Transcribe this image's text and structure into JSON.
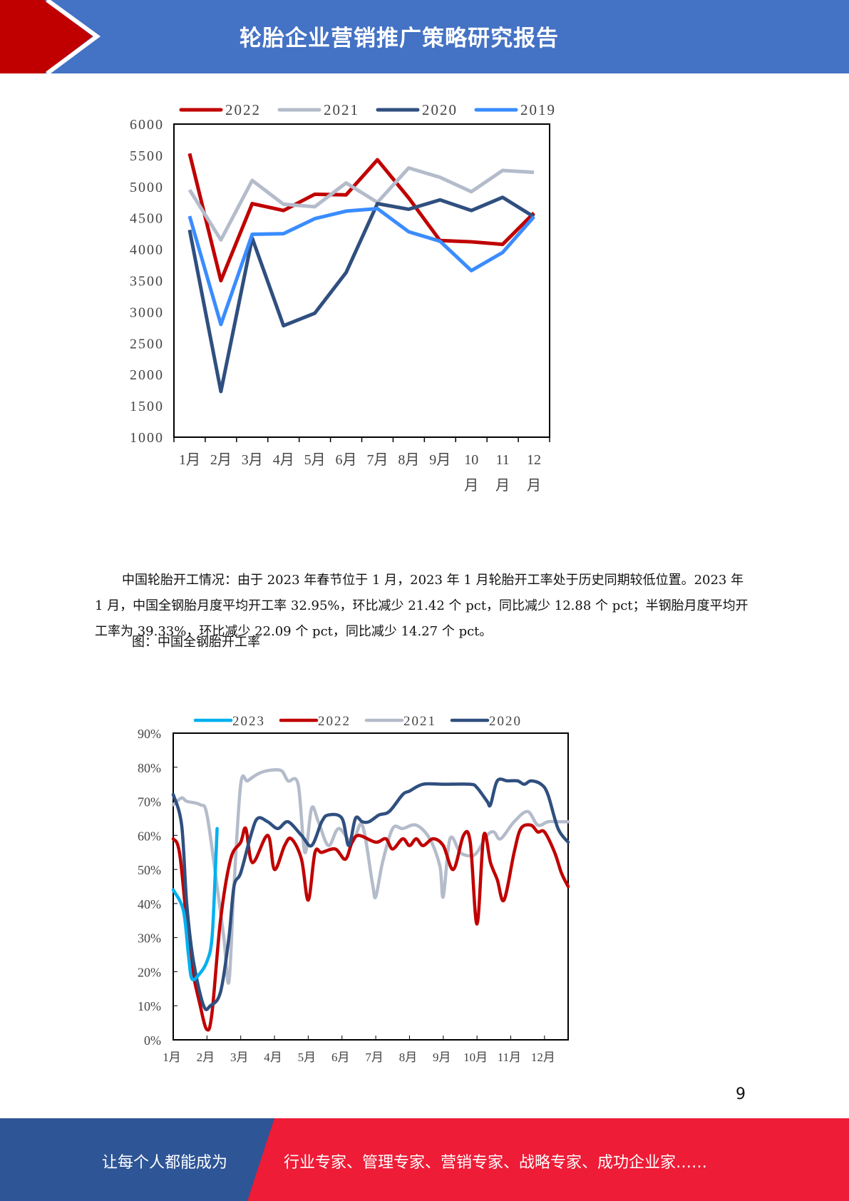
{
  "header": {
    "title": "轮胎企业营销推广策略研究报告",
    "colors": {
      "blue": "#4472c4",
      "red": "#c00000"
    }
  },
  "paragraph": {
    "lines": [
      "中国轮胎开工情况：由于 2023 年春节位于 1 月，2023 年 1 月轮胎开工率处于历史同期较低位置。2023 年 1 月，中国全钢胎月度平均开工率 32.95%，环比减少 21.42 个 pct，同比减少 12.88 个 pct；半钢胎月度平均开工率为 39.33%，环比减少 22.09 个 pct，同比减少 14.27 个 pct。"
    ]
  },
  "caption": "图：中国全钢胎开工率",
  "page_number": "9",
  "footer": {
    "left": "让每个人都能成为",
    "right": "行业专家、管理专家、营销专家、战略专家、成功企业家……",
    "colors": {
      "blue": "#2e5596",
      "red": "#ee1c37"
    }
  },
  "chart_data": [
    {
      "type": "line",
      "title": "",
      "categories": [
        "1月",
        "2月",
        "3月",
        "4月",
        "5月",
        "6月",
        "7月",
        "8月",
        "9月",
        "10月",
        "11月",
        "12月"
      ],
      "ylim": [
        1000,
        6000
      ],
      "yticks": [
        "6000",
        "5500",
        "5000",
        "4500",
        "4000",
        "3500",
        "3000",
        "2500",
        "2000",
        "1500",
        "1000"
      ],
      "legend": "top",
      "series": [
        {
          "name": "2022",
          "color": "#c00000",
          "values": [
            5530,
            3500,
            4730,
            4620,
            4880,
            4870,
            5430,
            4820,
            4140,
            4120,
            4080,
            4580
          ]
        },
        {
          "name": "2021",
          "color": "#b4bccb",
          "values": [
            4950,
            4150,
            5100,
            4720,
            4680,
            5060,
            4750,
            5300,
            5150,
            4920,
            5260,
            5230
          ]
        },
        {
          "name": "2020",
          "color": "#2f4f7f",
          "values": [
            4310,
            1730,
            4180,
            2780,
            2980,
            3630,
            4730,
            4640,
            4790,
            4620,
            4830,
            4520
          ]
        },
        {
          "name": "2019",
          "color": "#3a8cff",
          "values": [
            4530,
            2800,
            4240,
            4250,
            4490,
            4610,
            4650,
            4280,
            4130,
            3660,
            3950,
            4520
          ]
        }
      ]
    },
    {
      "type": "line",
      "title": "中国全钢胎开工率",
      "categories": [
        "1月",
        "2月",
        "3月",
        "4月",
        "5月",
        "6月",
        "7月",
        "8月",
        "9月",
        "10月",
        "11月",
        "12月"
      ],
      "x_unit": "months since Jan 1",
      "xlim": [
        0,
        11.7
      ],
      "ylim": [
        0,
        90
      ],
      "yticks": [
        "90%",
        "80%",
        "70%",
        "60%",
        "50%",
        "40%",
        "30%",
        "20%",
        "10%",
        "0%"
      ],
      "legend": "top",
      "series": [
        {
          "name": "2023",
          "color": "#00b0f0",
          "points": [
            [
              0,
              44
            ],
            [
              0.3,
              38
            ],
            [
              0.45,
              25
            ],
            [
              0.55,
              18
            ],
            [
              0.75,
              19
            ],
            [
              1.0,
              23
            ],
            [
              1.15,
              30
            ],
            [
              1.25,
              50
            ],
            [
              1.3,
              62
            ]
          ]
        },
        {
          "name": "2022",
          "color": "#c00000",
          "points": [
            [
              0,
              59
            ],
            [
              0.2,
              54
            ],
            [
              0.5,
              25
            ],
            [
              0.8,
              10
            ],
            [
              1.0,
              3
            ],
            [
              1.15,
              8
            ],
            [
              1.4,
              35
            ],
            [
              1.7,
              53
            ],
            [
              2.0,
              58
            ],
            [
              2.15,
              62
            ],
            [
              2.35,
              52
            ],
            [
              2.8,
              60
            ],
            [
              3.0,
              50
            ],
            [
              3.3,
              57
            ],
            [
              3.5,
              59
            ],
            [
              3.8,
              53
            ],
            [
              4.0,
              41
            ],
            [
              4.2,
              55
            ],
            [
              4.4,
              55
            ],
            [
              4.8,
              56
            ],
            [
              5.1,
              53
            ],
            [
              5.3,
              58
            ],
            [
              5.5,
              60
            ],
            [
              6.0,
              58
            ],
            [
              6.3,
              59
            ],
            [
              6.5,
              56
            ],
            [
              6.8,
              59
            ],
            [
              7.0,
              57
            ],
            [
              7.2,
              59
            ],
            [
              7.4,
              57
            ],
            [
              7.7,
              59
            ],
            [
              8.0,
              57
            ],
            [
              8.3,
              50
            ],
            [
              8.6,
              60
            ],
            [
              8.8,
              58
            ],
            [
              9.0,
              34
            ],
            [
              9.2,
              60
            ],
            [
              9.4,
              52
            ],
            [
              9.6,
              47
            ],
            [
              9.8,
              41
            ],
            [
              10.1,
              55
            ],
            [
              10.3,
              62
            ],
            [
              10.6,
              63
            ],
            [
              10.8,
              61
            ],
            [
              11.0,
              61
            ],
            [
              11.3,
              55
            ],
            [
              11.5,
              49
            ],
            [
              11.7,
              45
            ]
          ]
        },
        {
          "name": "2021",
          "color": "#b4bccb",
          "points": [
            [
              0,
              69
            ],
            [
              0.25,
              71
            ],
            [
              0.4,
              70
            ],
            [
              0.8,
              69
            ],
            [
              1.0,
              66
            ],
            [
              1.3,
              45
            ],
            [
              1.5,
              30
            ],
            [
              1.65,
              17
            ],
            [
              1.8,
              45
            ],
            [
              2.0,
              75
            ],
            [
              2.2,
              76
            ],
            [
              2.5,
              78
            ],
            [
              2.8,
              79
            ],
            [
              3.2,
              79
            ],
            [
              3.4,
              76
            ],
            [
              3.7,
              75
            ],
            [
              3.9,
              55
            ],
            [
              4.1,
              68
            ],
            [
              4.3,
              64
            ],
            [
              4.6,
              57
            ],
            [
              4.9,
              62
            ],
            [
              5.3,
              58
            ],
            [
              5.6,
              63
            ],
            [
              5.9,
              46
            ],
            [
              6.0,
              42
            ],
            [
              6.2,
              52
            ],
            [
              6.5,
              62
            ],
            [
              6.8,
              62
            ],
            [
              7.2,
              63
            ],
            [
              7.6,
              59
            ],
            [
              7.9,
              51
            ],
            [
              8.0,
              42
            ],
            [
              8.2,
              59
            ],
            [
              8.5,
              55
            ],
            [
              8.8,
              54
            ],
            [
              9.0,
              55
            ],
            [
              9.3,
              60
            ],
            [
              9.5,
              61
            ],
            [
              9.7,
              59
            ],
            [
              10.1,
              64
            ],
            [
              10.5,
              67
            ],
            [
              10.8,
              63
            ],
            [
              11.1,
              64
            ],
            [
              11.4,
              64
            ],
            [
              11.7,
              64
            ]
          ]
        },
        {
          "name": "2020",
          "color": "#2f4f7f",
          "points": [
            [
              0,
              72
            ],
            [
              0.25,
              63
            ],
            [
              0.4,
              40
            ],
            [
              0.6,
              23
            ],
            [
              0.9,
              10
            ],
            [
              1.1,
              10
            ],
            [
              1.4,
              14
            ],
            [
              1.65,
              30
            ],
            [
              1.8,
              45
            ],
            [
              2.0,
              49
            ],
            [
              2.3,
              60
            ],
            [
              2.5,
              65
            ],
            [
              2.8,
              64
            ],
            [
              3.1,
              62
            ],
            [
              3.4,
              64
            ],
            [
              3.8,
              60
            ],
            [
              4.1,
              57
            ],
            [
              4.4,
              64
            ],
            [
              4.6,
              66
            ],
            [
              5.0,
              65
            ],
            [
              5.2,
              57
            ],
            [
              5.4,
              65
            ],
            [
              5.6,
              64
            ],
            [
              5.8,
              64
            ],
            [
              6.1,
              66
            ],
            [
              6.4,
              67
            ],
            [
              6.8,
              72
            ],
            [
              7.0,
              73
            ],
            [
              7.4,
              75
            ],
            [
              8.0,
              75
            ],
            [
              8.8,
              75
            ],
            [
              9.0,
              74
            ],
            [
              9.3,
              70
            ],
            [
              9.4,
              69
            ],
            [
              9.6,
              76
            ],
            [
              9.9,
              76
            ],
            [
              10.2,
              76
            ],
            [
              10.4,
              75
            ],
            [
              10.6,
              76
            ],
            [
              10.9,
              75
            ],
            [
              11.1,
              72
            ],
            [
              11.4,
              62
            ],
            [
              11.7,
              58
            ]
          ]
        }
      ]
    }
  ]
}
